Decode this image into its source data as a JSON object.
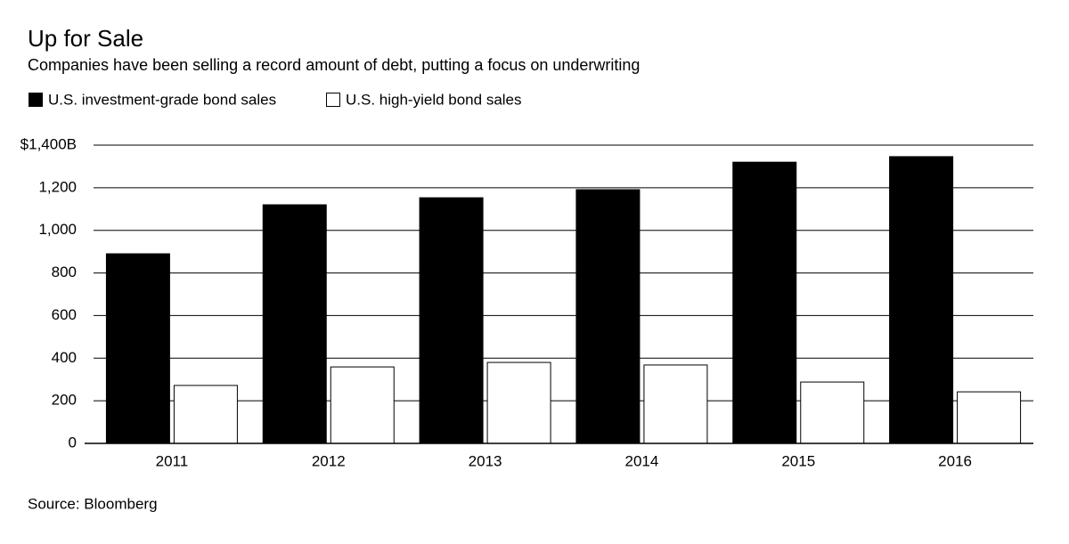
{
  "chart_data": {
    "type": "bar",
    "title": "Up for Sale",
    "subtitle": "Companies have been selling a record amount of debt, putting a focus on underwriting",
    "source": "Source: Bloomberg",
    "categories": [
      "2011",
      "2012",
      "2013",
      "2014",
      "2015",
      "2016"
    ],
    "series": [
      {
        "name": "U.S. investment-grade bond sales",
        "color": "#000000",
        "values": [
          890,
          1120,
          1153,
          1191,
          1320,
          1346
        ]
      },
      {
        "name": "U.S. high-yield bond sales",
        "color": "#ffffff",
        "values": [
          272,
          359,
          380,
          368,
          288,
          242
        ]
      }
    ],
    "ylim": [
      0,
      1400
    ],
    "yticks": [
      0,
      200,
      400,
      600,
      800,
      {
        "value": 1000,
        "label": "1,000"
      },
      {
        "value": 1200,
        "label": "1,200"
      },
      {
        "value": 1400,
        "label": "$1,400B"
      }
    ],
    "grid": true
  }
}
